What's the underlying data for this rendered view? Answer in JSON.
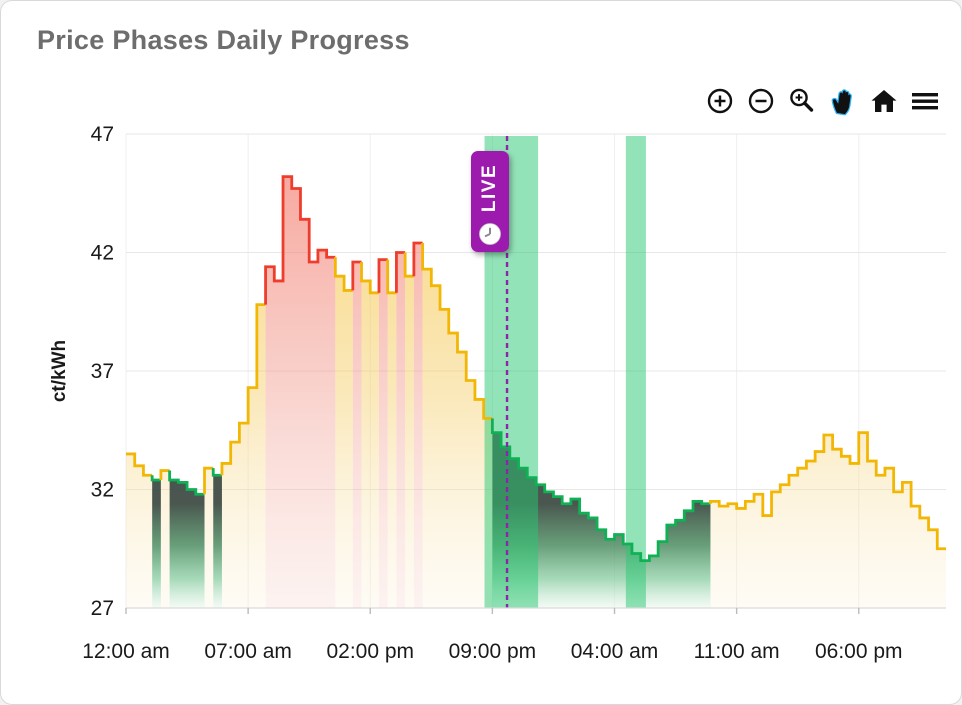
{
  "card": {
    "title": "Price Phases Daily Progress"
  },
  "toolbar": {
    "items": [
      "zoom-in",
      "zoom-out",
      "box-zoom",
      "pan",
      "reset-home",
      "menu"
    ],
    "active_item": "pan"
  },
  "live_badge": {
    "label": "LIVE"
  },
  "chart_data": {
    "type": "line",
    "subtype": "step-phase-line",
    "title": "Price Phases Daily Progress",
    "xlabel": "",
    "ylabel": "ct/kWh",
    "ylim": [
      27,
      47
    ],
    "y_ticks": [
      27,
      32,
      37,
      42,
      47
    ],
    "x_ticks": [
      {
        "hour": 0,
        "label": "12:00 am"
      },
      {
        "hour": 7,
        "label": "07:00 am"
      },
      {
        "hour": 14,
        "label": "02:00 pm"
      },
      {
        "hour": 21,
        "label": "09:00 pm"
      },
      {
        "hour": 28,
        "label": "04:00 am"
      },
      {
        "hour": 35,
        "label": "11:00 am"
      },
      {
        "hour": 42,
        "label": "06:00 pm"
      }
    ],
    "x_range_hours": [
      0,
      47
    ],
    "step_hours": 0.5,
    "grid": true,
    "legend_position": "none",
    "points_format": "[value_ct_per_kwh, phase] phase: n=normal(yellow) p=peak(red) c=cheap(green)",
    "points": [
      [
        33.5,
        "n"
      ],
      [
        33.0,
        "n"
      ],
      [
        32.6,
        "n"
      ],
      [
        32.4,
        "c"
      ],
      [
        32.8,
        "n"
      ],
      [
        32.4,
        "c"
      ],
      [
        32.3,
        "c"
      ],
      [
        32.0,
        "c"
      ],
      [
        31.8,
        "c"
      ],
      [
        32.9,
        "n"
      ],
      [
        32.6,
        "c"
      ],
      [
        33.1,
        "n"
      ],
      [
        34.0,
        "n"
      ],
      [
        34.8,
        "n"
      ],
      [
        36.3,
        "n"
      ],
      [
        39.8,
        "n"
      ],
      [
        41.4,
        "p"
      ],
      [
        40.8,
        "p"
      ],
      [
        45.2,
        "p"
      ],
      [
        44.7,
        "p"
      ],
      [
        43.4,
        "p"
      ],
      [
        41.6,
        "p"
      ],
      [
        42.1,
        "p"
      ],
      [
        41.8,
        "p"
      ],
      [
        41.0,
        "n"
      ],
      [
        40.4,
        "n"
      ],
      [
        41.6,
        "p"
      ],
      [
        40.8,
        "n"
      ],
      [
        40.3,
        "n"
      ],
      [
        41.7,
        "p"
      ],
      [
        40.3,
        "n"
      ],
      [
        42.0,
        "p"
      ],
      [
        41.0,
        "n"
      ],
      [
        42.4,
        "p"
      ],
      [
        41.3,
        "n"
      ],
      [
        40.6,
        "n"
      ],
      [
        39.6,
        "n"
      ],
      [
        38.6,
        "n"
      ],
      [
        37.8,
        "n"
      ],
      [
        36.6,
        "n"
      ],
      [
        35.8,
        "n"
      ],
      [
        35.0,
        "n"
      ],
      [
        34.4,
        "c"
      ],
      [
        33.8,
        "c"
      ],
      [
        33.3,
        "c"
      ],
      [
        32.9,
        "c"
      ],
      [
        32.5,
        "c"
      ],
      [
        32.2,
        "c"
      ],
      [
        31.9,
        "c"
      ],
      [
        31.7,
        "c"
      ],
      [
        31.4,
        "c"
      ],
      [
        31.6,
        "c"
      ],
      [
        31.0,
        "c"
      ],
      [
        30.8,
        "c"
      ],
      [
        30.3,
        "c"
      ],
      [
        29.9,
        "c"
      ],
      [
        30.1,
        "c"
      ],
      [
        29.7,
        "c"
      ],
      [
        29.3,
        "c"
      ],
      [
        29.0,
        "c"
      ],
      [
        29.2,
        "c"
      ],
      [
        29.8,
        "c"
      ],
      [
        30.5,
        "c"
      ],
      [
        30.7,
        "c"
      ],
      [
        31.1,
        "c"
      ],
      [
        31.5,
        "c"
      ],
      [
        31.4,
        "c"
      ],
      [
        31.5,
        "n"
      ],
      [
        31.3,
        "n"
      ],
      [
        31.4,
        "n"
      ],
      [
        31.2,
        "n"
      ],
      [
        31.5,
        "n"
      ],
      [
        31.8,
        "n"
      ],
      [
        30.9,
        "n"
      ],
      [
        31.9,
        "n"
      ],
      [
        32.2,
        "n"
      ],
      [
        32.6,
        "n"
      ],
      [
        32.9,
        "n"
      ],
      [
        33.2,
        "n"
      ],
      [
        33.6,
        "n"
      ],
      [
        34.3,
        "n"
      ],
      [
        33.7,
        "n"
      ],
      [
        33.4,
        "n"
      ],
      [
        33.1,
        "n"
      ],
      [
        34.4,
        "n"
      ],
      [
        33.2,
        "n"
      ],
      [
        32.6,
        "n"
      ],
      [
        32.9,
        "n"
      ],
      [
        31.9,
        "n"
      ],
      [
        32.3,
        "n"
      ],
      [
        31.3,
        "n"
      ],
      [
        30.8,
        "n"
      ],
      [
        30.3,
        "n"
      ],
      [
        29.5,
        "n"
      ]
    ],
    "highlight_bands_hours": [
      [
        20.55,
        23.62
      ],
      [
        28.65,
        29.8
      ]
    ],
    "live_line_hour": 21.84,
    "colors": {
      "normal_line": "#F2B705",
      "peak_line": "#EE3D2C",
      "cheap_line": "#10B155",
      "band": "#27C771",
      "live_line": "#8E24AA",
      "badge": "#9C1BAE",
      "title_text": "#6D6D6D",
      "axis_text": "#1A1A1A",
      "grid_h": "#E7E7E7",
      "grid_v": "#EFEFEF",
      "baseline": "#DADADA",
      "toolbar_icon": "#111111",
      "toolbar_active": "#29B6F6"
    }
  }
}
